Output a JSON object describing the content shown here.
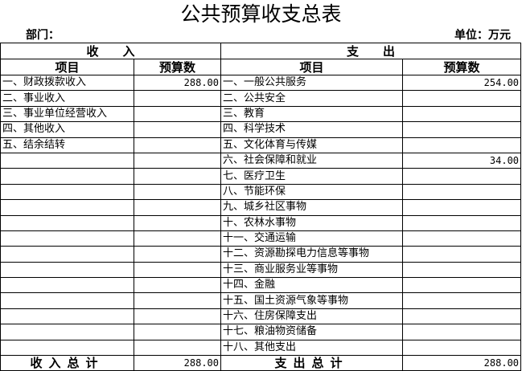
{
  "title": "公共预算收支总表",
  "department_label": "部门：",
  "unit_label": "单位：万元",
  "income_header": "收　　入",
  "expense_header": "支　　出",
  "col_item": "项目",
  "col_budget": "预算数",
  "income_rows": [
    {
      "item": "一、财政拨款收入",
      "value": "288.00"
    },
    {
      "item": "二、事业收入",
      "value": ""
    },
    {
      "item": "三、事业单位经营收入",
      "value": ""
    },
    {
      "item": "四、其他收入",
      "value": ""
    },
    {
      "item": "五、结余结转",
      "value": ""
    }
  ],
  "expense_rows": [
    {
      "item": "一、一般公共服务",
      "value": "254.00"
    },
    {
      "item": "二、公共安全",
      "value": ""
    },
    {
      "item": "三、教育",
      "value": ""
    },
    {
      "item": "四、科学技术",
      "value": ""
    },
    {
      "item": "五、文化体育与传媒",
      "value": ""
    },
    {
      "item": "六、社会保障和就业",
      "value": "34.00"
    },
    {
      "item": "七、医疗卫生",
      "value": ""
    },
    {
      "item": "八、节能环保",
      "value": ""
    },
    {
      "item": "九、城乡社区事物",
      "value": ""
    },
    {
      "item": "十、农林水事物",
      "value": ""
    },
    {
      "item": "十一、交通运输",
      "value": ""
    },
    {
      "item": "十二、资源勘探电力信息等事物",
      "value": ""
    },
    {
      "item": "十三、商业服务业等事物",
      "value": ""
    },
    {
      "item": "十四、金融",
      "value": ""
    },
    {
      "item": "十五、国土资源气象等事物",
      "value": ""
    },
    {
      "item": "十六、住房保障支出",
      "value": ""
    },
    {
      "item": "十七、粮油物资储备",
      "value": ""
    },
    {
      "item": "十八、其他支出",
      "value": ""
    }
  ],
  "totals": {
    "income_label": "收入总计",
    "income_value": "288.00",
    "expense_label": "支出总计",
    "expense_value": "288.00"
  }
}
